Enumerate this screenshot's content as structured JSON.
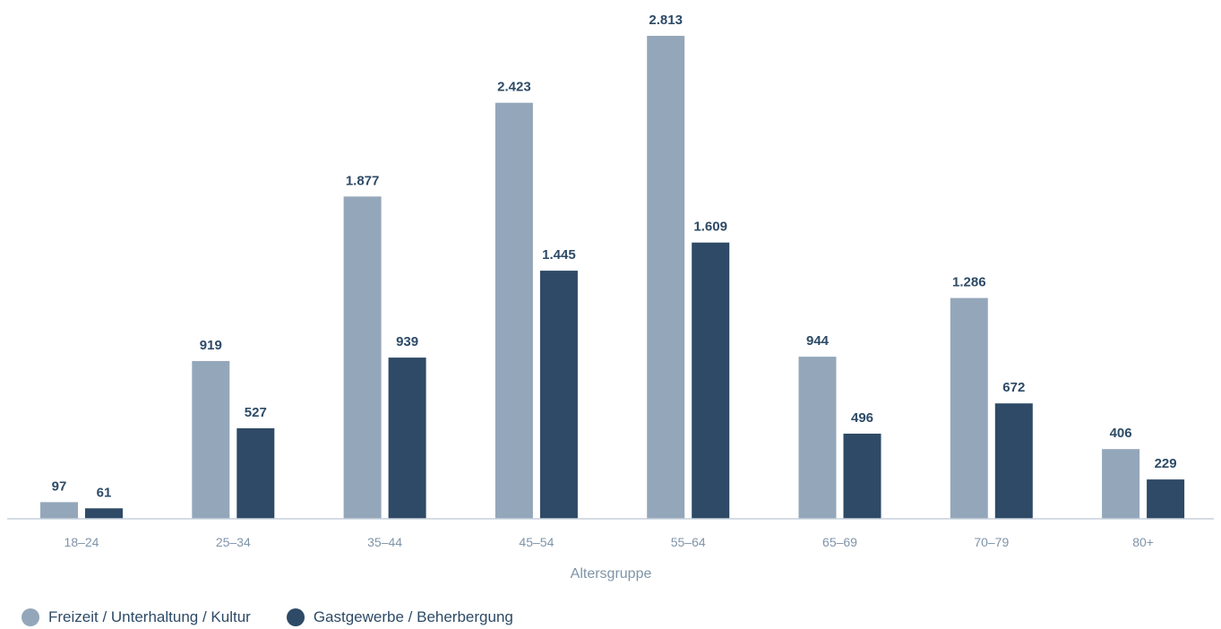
{
  "chart_data": {
    "type": "bar",
    "categories": [
      "18–24",
      "25–34",
      "35–44",
      "45–54",
      "55–64",
      "65–69",
      "70–79",
      "80+"
    ],
    "series": [
      {
        "name": "Freizeit / Unterhaltung / Kultur",
        "color": "#94a7ba",
        "values": [
          97,
          919,
          1877,
          2423,
          2813,
          944,
          1286,
          406
        ],
        "labels": [
          "97",
          "919",
          "1.877",
          "2.423",
          "2.813",
          "944",
          "1.286",
          "406"
        ]
      },
      {
        "name": "Gastgewerbe / Beherbergung",
        "color": "#2e4a66",
        "values": [
          61,
          527,
          939,
          1445,
          1609,
          496,
          672,
          229
        ],
        "labels": [
          "61",
          "527",
          "939",
          "1.445",
          "1.609",
          "496",
          "672",
          "229"
        ]
      }
    ],
    "xlabel": "Altersgruppe",
    "ylabel": "",
    "ylim": [
      0,
      2813
    ],
    "grid": false,
    "legend_position": "bottom-left"
  }
}
